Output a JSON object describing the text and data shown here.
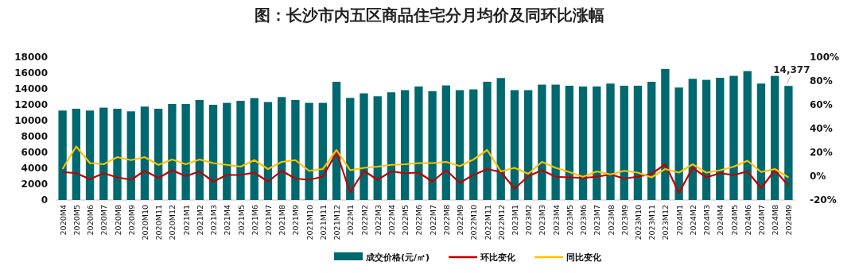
{
  "chart_data": {
    "type": "bar",
    "title": "图：长沙市内五区商品住宅分月均价及同环比涨幅",
    "categories": [
      "2020M4",
      "2020M5",
      "2020M6",
      "2020M7",
      "2020M8",
      "2020M9",
      "2020M10",
      "2020M11",
      "2020M12",
      "2021M1",
      "2021M2",
      "2021M3",
      "2021M4",
      "2021M5",
      "2021M6",
      "2021M7",
      "2021M8",
      "2021M9",
      "2021M10",
      "2021M11",
      "2021M12",
      "2022M1",
      "2022M2",
      "2022M3",
      "2022M4",
      "2022M5",
      "2022M6",
      "2022M7",
      "2022M8",
      "2022M9",
      "2022M10",
      "2022M11",
      "2022M12",
      "2023M1",
      "2023M2",
      "2023M3",
      "2023M4",
      "2023M5",
      "2023M6",
      "2023M7",
      "2023M8",
      "2023M9",
      "2023M10",
      "2023M11",
      "2023M12",
      "2024M1",
      "2024M2",
      "2024M3",
      "2024M4",
      "2024M5",
      "2024M6",
      "2024M7",
      "2024M8",
      "2024M9"
    ],
    "series": [
      {
        "name": "成交价格(元/㎡)",
        "color": "#00686f",
        "values": [
          11270,
          11500,
          11270,
          11640,
          11500,
          11170,
          11770,
          11500,
          12100,
          12100,
          12600,
          12000,
          12240,
          12500,
          12840,
          12340,
          12970,
          12600,
          12240,
          12240,
          14900,
          12870,
          13440,
          13070,
          13570,
          13840,
          14300,
          13700,
          14440,
          13840,
          13940,
          14900,
          15370,
          13840,
          13840,
          14540,
          14540,
          14400,
          14300,
          14300,
          14670,
          14400,
          14400,
          14900,
          16500,
          14170,
          15270,
          15140,
          15400,
          15640,
          16240,
          14670,
          15640,
          14377
        ],
        "value_labels": [
          null,
          null,
          null,
          null,
          null,
          null,
          null,
          null,
          null,
          null,
          null,
          null,
          null,
          null,
          null,
          null,
          null,
          null,
          null,
          null,
          null,
          null,
          null,
          null,
          null,
          null,
          null,
          null,
          null,
          null,
          null,
          null,
          null,
          null,
          null,
          null,
          null,
          null,
          null,
          null,
          null,
          null,
          null,
          null,
          null,
          null,
          null,
          null,
          null,
          null,
          null,
          null,
          null,
          "14,377"
        ]
      },
      {
        "name": "环比变化",
        "type": "line",
        "axis": "y2",
        "color": "#c00000",
        "values": [
          3.5,
          2.5,
          -2.5,
          2.5,
          -1,
          -3,
          4.5,
          -1.5,
          5,
          0,
          4,
          -4.5,
          1,
          1,
          3,
          -4.5,
          4.5,
          -2,
          -3,
          -0.5,
          20,
          -13.5,
          4.5,
          -3,
          4,
          2.5,
          3,
          -4.5,
          5,
          -5.5,
          1,
          6,
          3.5,
          -10.5,
          0,
          5,
          -0.5,
          -1,
          -1.5,
          -0.5,
          1.5,
          -2,
          -0.5,
          2,
          10,
          -14,
          7,
          -1,
          2.5,
          1,
          4,
          -10,
          5,
          -8
        ]
      },
      {
        "name": "同比变化",
        "type": "line",
        "axis": "y2",
        "color": "#ffc000",
        "values": [
          6,
          25,
          11,
          10,
          16,
          13.5,
          16,
          9.5,
          14,
          10,
          14,
          11,
          9.5,
          8,
          13.5,
          6,
          12,
          13.5,
          4.5,
          6,
          22,
          5,
          7,
          8,
          9.5,
          10,
          11,
          11,
          12,
          8.5,
          14,
          22,
          4,
          7,
          2,
          12,
          7,
          3.5,
          -0.5,
          4,
          1.5,
          4.5,
          3,
          -1,
          6,
          3,
          10,
          3,
          5,
          8,
          13,
          3.5,
          6,
          -1
        ]
      }
    ],
    "ylim": [
      0,
      18000
    ],
    "yticks": [
      0,
      2000,
      4000,
      6000,
      8000,
      10000,
      12000,
      14000,
      16000,
      18000
    ],
    "y2lim": [
      -20,
      100
    ],
    "y2ticks": [
      {
        "value": -20,
        "label": "-20%"
      },
      {
        "value": 0,
        "label": "0%"
      },
      {
        "value": 20,
        "label": "20%"
      },
      {
        "value": 40,
        "label": "40%"
      },
      {
        "value": 60,
        "label": "60%"
      },
      {
        "value": 80,
        "label": "80%"
      },
      {
        "value": 100,
        "label": "100%"
      }
    ],
    "grid": false,
    "legend": "bottom"
  }
}
